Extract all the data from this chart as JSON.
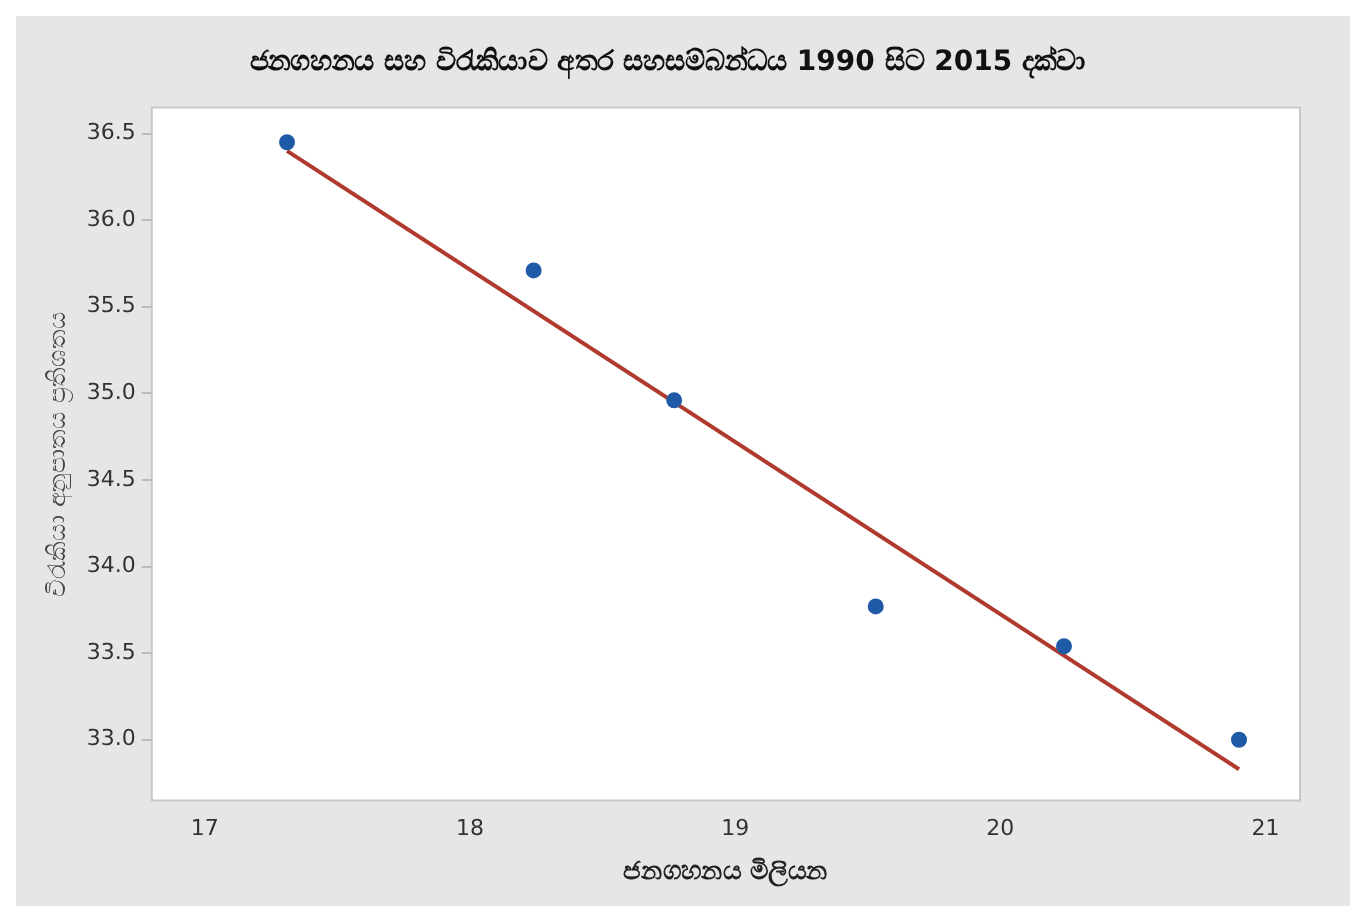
{
  "chart_data": {
    "type": "scatter",
    "title": "ජනගහනය සහ විරැකියාව අතර සහසම්බන්ධය 1990 සිට 2015 දක්වා",
    "xlabel": "ජනගහනය මිලියන",
    "ylabel": "විරැකියා අනුපාතය ප්‍රතිශතය",
    "series": [
      {
        "color": "#1f5aa6",
        "marker": "circle",
        "x": [
          17.31,
          18.24,
          18.77,
          19.53,
          20.24,
          20.9
        ],
        "values": [
          36.45,
          35.71,
          34.96,
          33.77,
          33.54,
          33.0
        ]
      },
      {
        "type": "line",
        "marker": "none",
        "color": "#b03a2e",
        "x": [
          17.31,
          20.9
        ],
        "values": [
          36.4,
          32.83
        ]
      }
    ],
    "xlim": [
      16.8,
      21.13
    ],
    "xticks": [
      17,
      18,
      19,
      20,
      21
    ],
    "ylim": [
      32.65,
      36.65
    ],
    "yticks": [
      {
        "value": 33,
        "label": "33.0"
      },
      33.5,
      {
        "value": 34,
        "label": "34.0"
      },
      34.5,
      {
        "value": 35,
        "label": "35.0"
      },
      35.5,
      {
        "value": 36,
        "label": "36.0"
      },
      36.5
    ],
    "grid": false,
    "legend": false
  }
}
